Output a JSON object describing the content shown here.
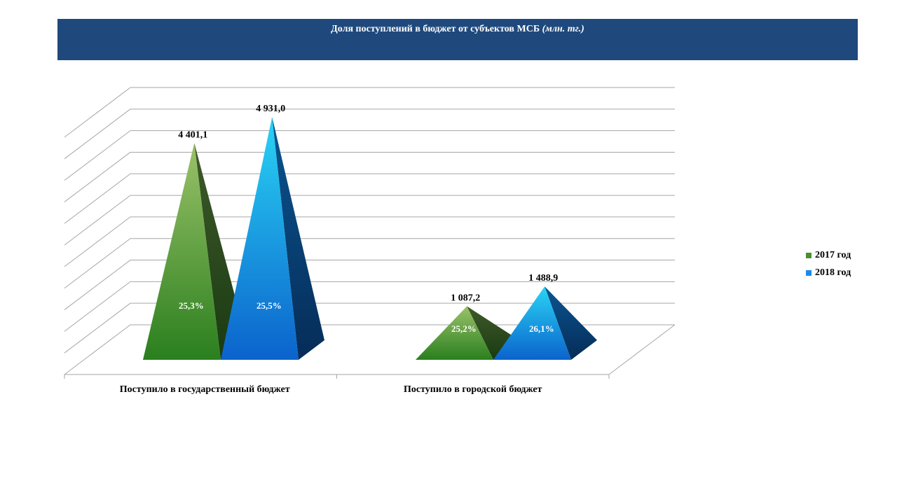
{
  "header": {
    "title": "Доля поступлений в бюджет от субъектов МСБ",
    "unit": "(млн. тг.)"
  },
  "colors": {
    "series_2017": "#3a8a2c",
    "series_2018": "#1a86e8",
    "header_bg": "#1f497d",
    "grid": "#a6a6a6"
  },
  "chart_data": {
    "type": "bar",
    "shape": "3d-pyramid",
    "categories": [
      "Поступило в государственный бюджет",
      "Поступило в городской бюджет"
    ],
    "series": [
      {
        "name": "2017 год",
        "values": [
          4401.1,
          1087.2
        ],
        "value_labels": [
          "4 401,1",
          "1 087,2"
        ],
        "share_labels": [
          "25,3%",
          "25,2%"
        ]
      },
      {
        "name": "2018 год",
        "values": [
          4931.0,
          1488.9
        ],
        "value_labels": [
          "4 931,0",
          "1 488,9"
        ],
        "share_labels": [
          "25,5%",
          "26,1%"
        ]
      }
    ],
    "ylim": [
      0,
      5500
    ],
    "grid": true,
    "legend_position": "right"
  }
}
